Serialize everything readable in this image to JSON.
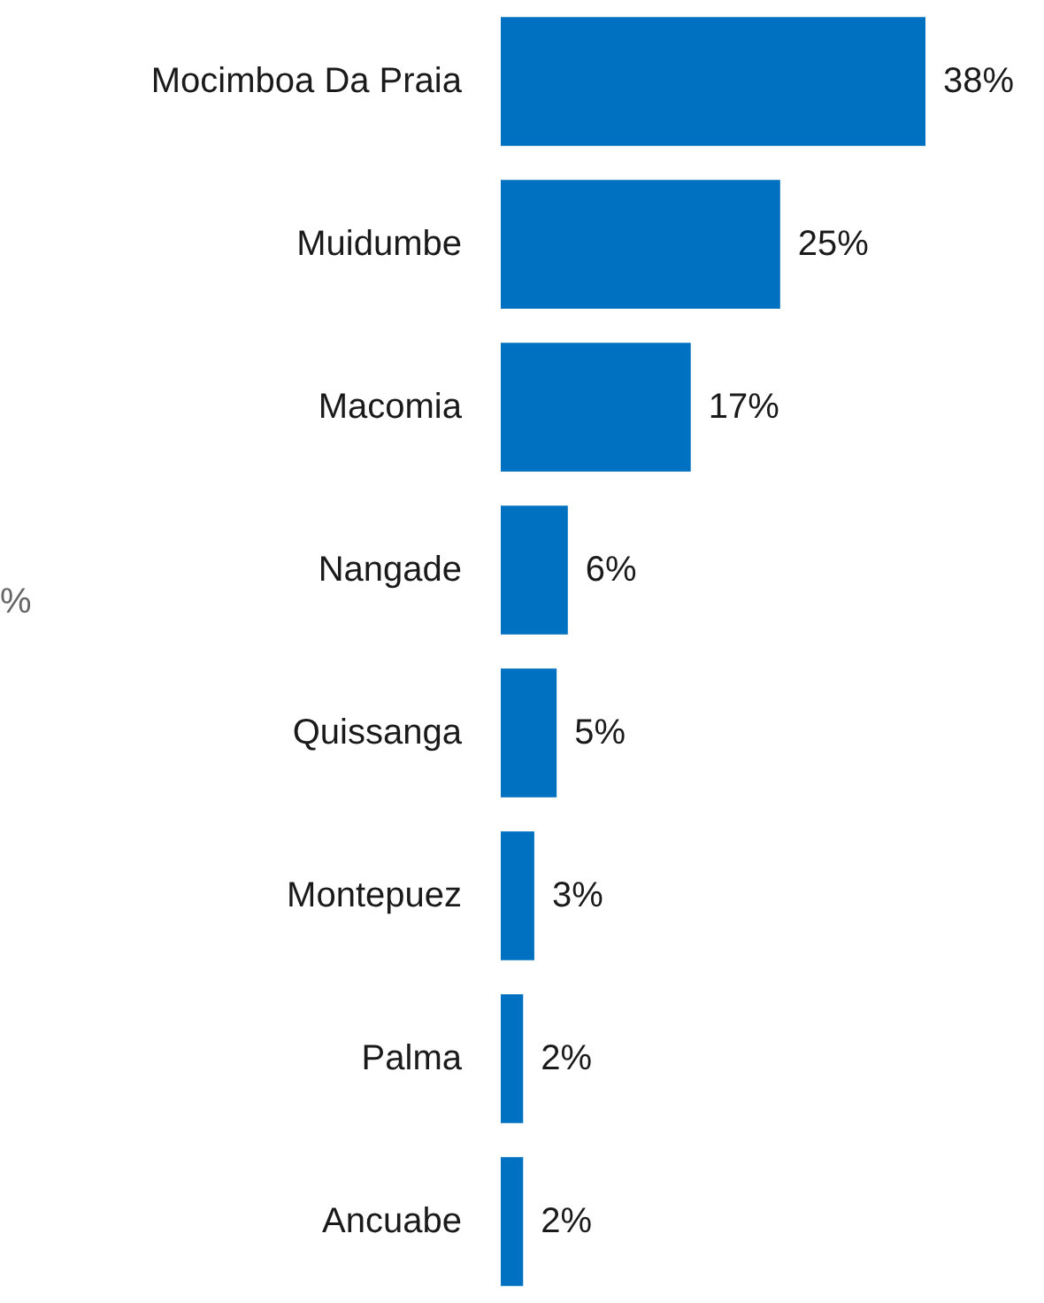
{
  "chart_data": {
    "type": "bar",
    "orientation": "horizontal",
    "categories": [
      "Mocimboa Da Praia",
      "Muidumbe",
      "Macomia",
      "Nangade",
      "Quissanga",
      "Montepuez",
      "Palma",
      "Ancuabe"
    ],
    "values": [
      38,
      25,
      17,
      6,
      5,
      3,
      2,
      2
    ],
    "value_labels": [
      "38%",
      "25%",
      "17%",
      "6%",
      "5%",
      "3%",
      "2%",
      "2%"
    ],
    "color": "#0070c0",
    "tick_labels": "y",
    "grid": false,
    "annotations": [
      "%"
    ]
  }
}
